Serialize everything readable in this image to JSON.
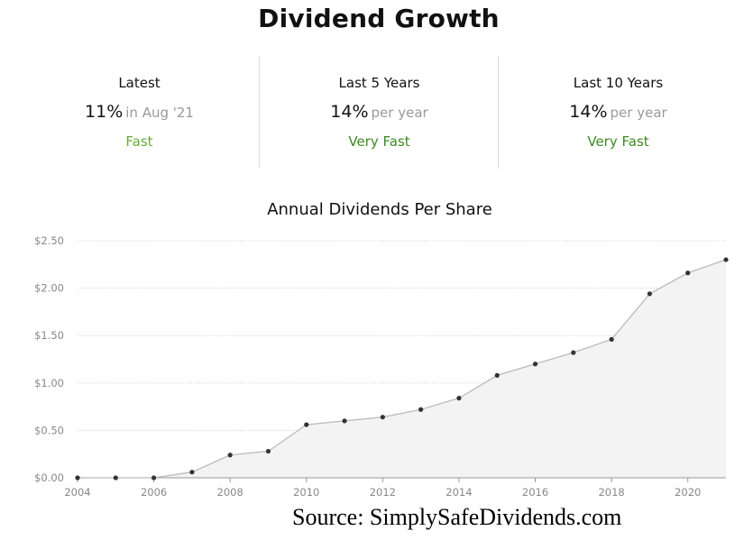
{
  "header": {
    "title": "Dividend Growth"
  },
  "stats": [
    {
      "label": "Latest",
      "value": "11%",
      "unit": "in Aug '21",
      "rating": "Fast",
      "rating_color": "#6aaa3a"
    },
    {
      "label": "Last 5 Years",
      "value": "14%",
      "unit": "per year",
      "rating": "Very Fast",
      "rating_color": "#3d8a22"
    },
    {
      "label": "Last 10 Years",
      "value": "14%",
      "unit": "per year",
      "rating": "Very Fast",
      "rating_color": "#3d8a22"
    }
  ],
  "chart_data": {
    "type": "area",
    "title": "Annual Dividends Per Share",
    "xlabel": "",
    "ylabel": "",
    "x": [
      2004,
      2005,
      2006,
      2007,
      2008,
      2009,
      2010,
      2011,
      2012,
      2013,
      2014,
      2015,
      2016,
      2017,
      2018,
      2019,
      2020,
      2021
    ],
    "values": [
      0.0,
      0.0,
      0.0,
      0.06,
      0.24,
      0.28,
      0.56,
      0.6,
      0.64,
      0.72,
      0.84,
      1.08,
      1.2,
      1.32,
      1.46,
      1.94,
      2.16,
      2.3
    ],
    "x_ticks": [
      "2004",
      "2006",
      "2008",
      "2010",
      "2012",
      "2014",
      "2016",
      "2018",
      "2020"
    ],
    "y_ticks": [
      "$0.00",
      "$0.50",
      "$1.00",
      "$1.50",
      "$2.00",
      "$2.50"
    ],
    "ylim": [
      0,
      2.5
    ],
    "xlim": [
      2004,
      2021
    ],
    "grid": true,
    "line_color": "#bbbbbb",
    "fill_color": "#f3f3f3",
    "point_color": "#333333"
  },
  "footer": {
    "source": "Source: SimplySafeDividends.com"
  }
}
